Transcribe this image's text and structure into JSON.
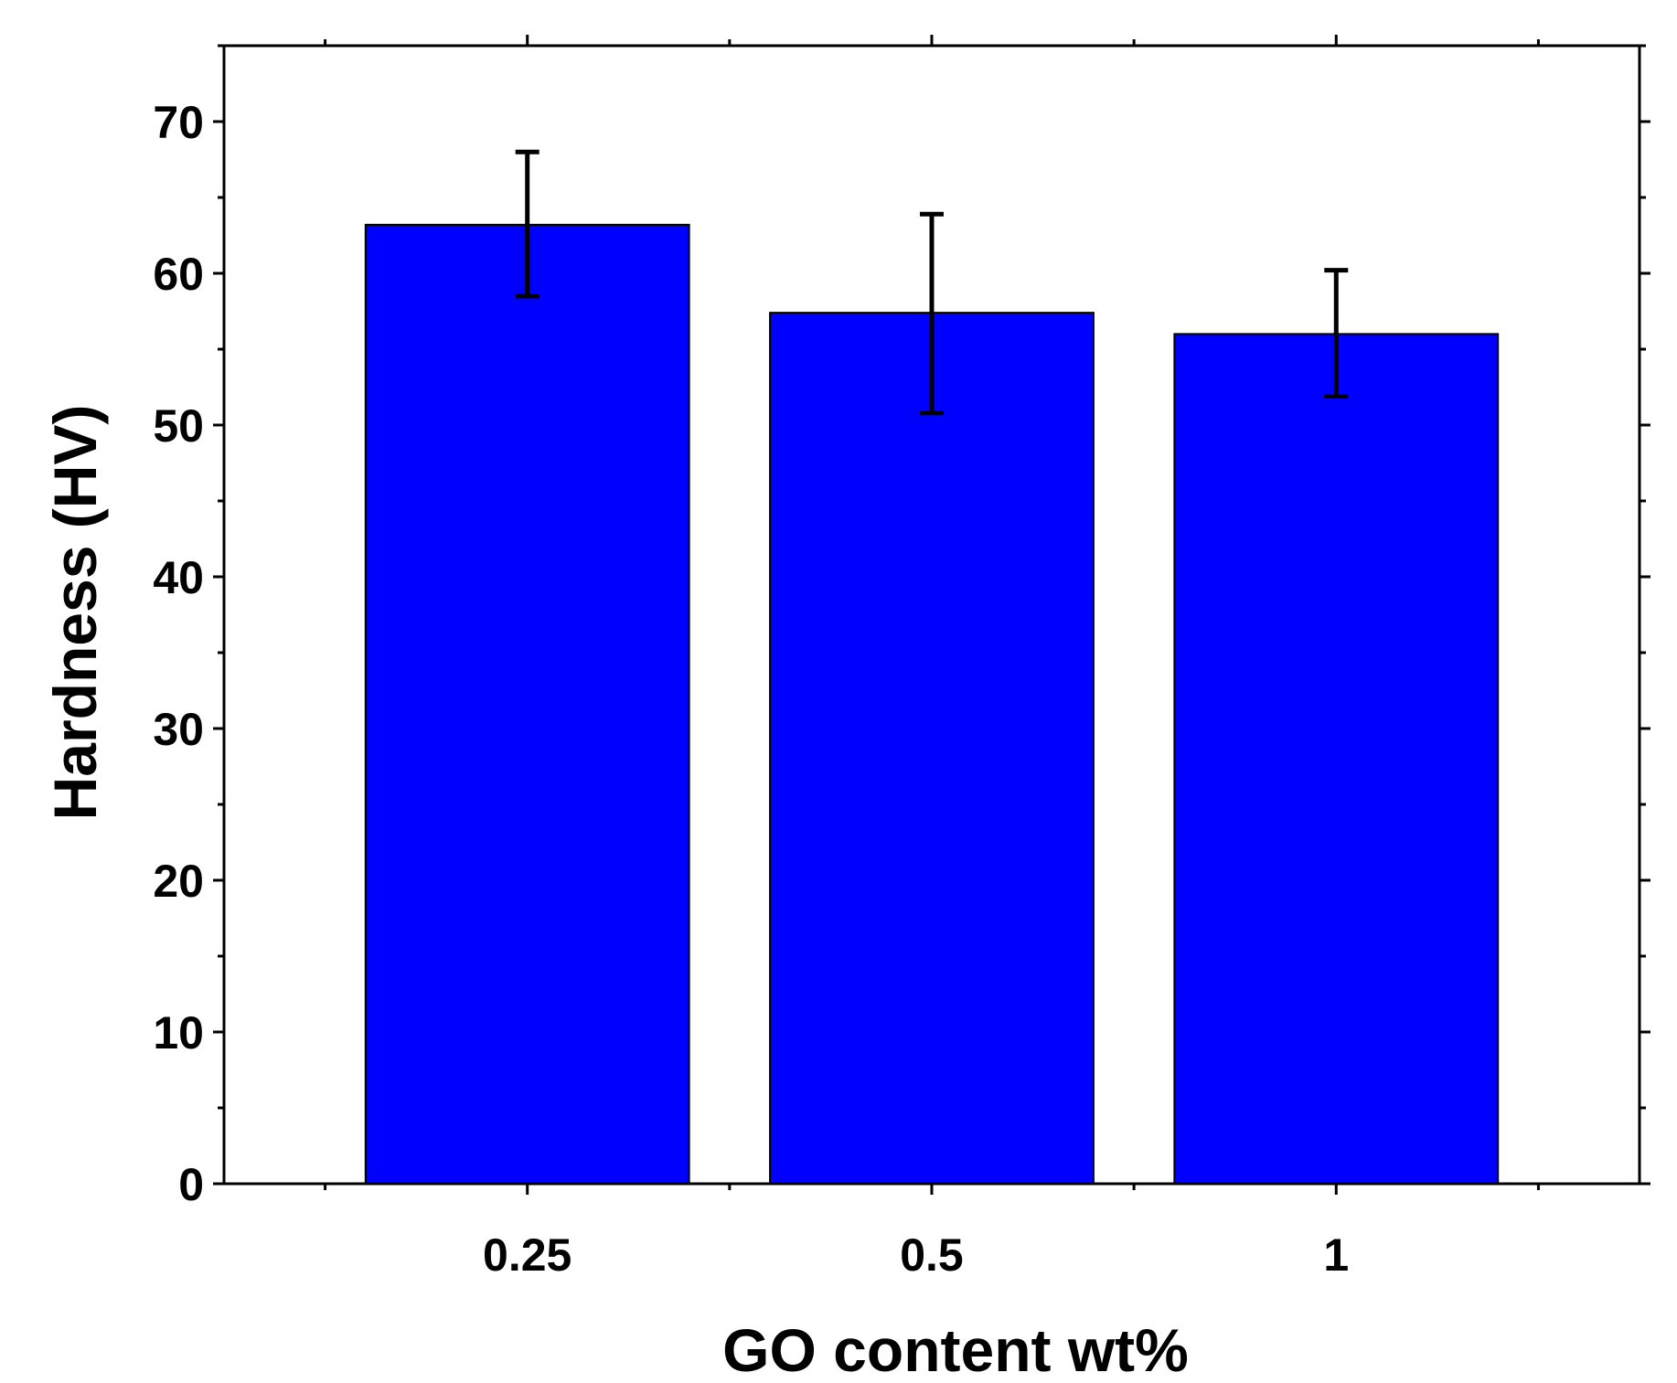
{
  "chart_data": {
    "type": "bar",
    "title": "",
    "xlabel": "GO content wt%",
    "ylabel": "Hardness (HV)",
    "categories": [
      "0.25",
      "0.5",
      "1"
    ],
    "values": [
      63.2,
      57.4,
      56.0
    ],
    "error_low": [
      58.5,
      50.8,
      51.9
    ],
    "error_high": [
      68.0,
      63.9,
      60.2
    ],
    "ylim": [
      0,
      75
    ],
    "yticks": [
      0,
      10,
      20,
      30,
      40,
      50,
      60,
      70
    ],
    "ytick_labels": [
      "0",
      "10",
      "20",
      "30",
      "40",
      "50",
      "60",
      "70"
    ],
    "grid": false,
    "legend": "none",
    "bar_color": "#0000FF",
    "edge_color": "#000000"
  }
}
